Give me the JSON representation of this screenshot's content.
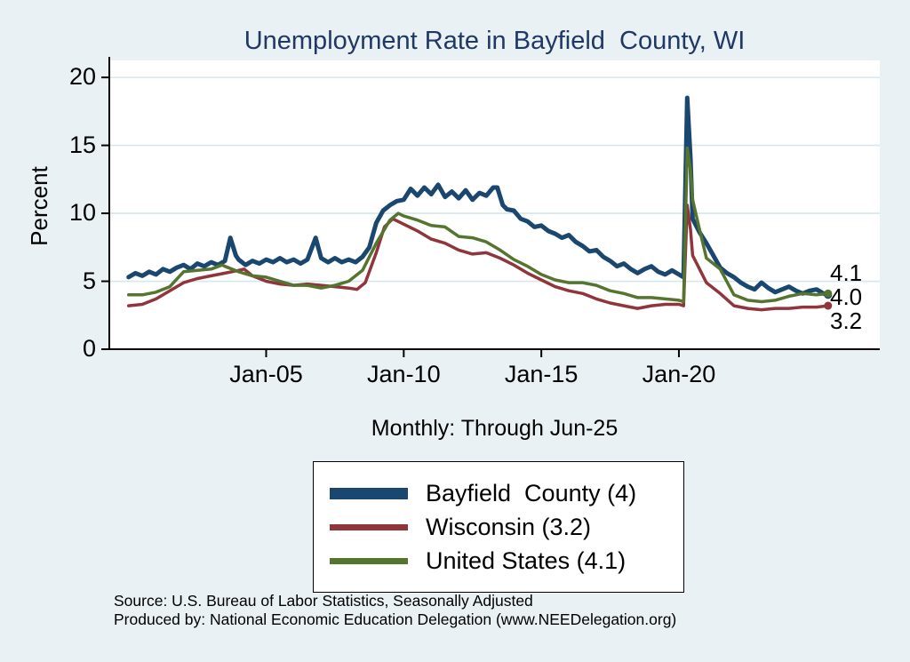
{
  "chart_data": {
    "type": "line",
    "title": "Unemployment Rate in Bayfield  County, WI",
    "subtitle": "Monthly: Through Jun-25",
    "ylabel": "Percent",
    "xlabel": "",
    "ylim": [
      0,
      21.25
    ],
    "xlim": [
      1999.3,
      2027.3
    ],
    "grid": true,
    "grid_color": "#d6e7ec",
    "background_color": "#e9f1f4",
    "plot_background": "#ffffff",
    "y_ticks": [
      0,
      5,
      10,
      15,
      20
    ],
    "x_ticks": [
      {
        "x": 2005,
        "label": "Jan-05"
      },
      {
        "x": 2010,
        "label": "Jan-10"
      },
      {
        "x": 2015,
        "label": "Jan-15"
      },
      {
        "x": 2020,
        "label": "Jan-20"
      }
    ],
    "legend_position": "bottom-center",
    "end_labels": [
      "4.1",
      "4.0",
      "3.2"
    ],
    "series": [
      {
        "name": "Bayfield  County (4)",
        "color": "#1a476f",
        "width": 5,
        "points": [
          [
            2000.0,
            5.3
          ],
          [
            2000.25,
            5.6
          ],
          [
            2000.5,
            5.4
          ],
          [
            2000.75,
            5.7
          ],
          [
            2001.0,
            5.5
          ],
          [
            2001.25,
            5.9
          ],
          [
            2001.5,
            5.7
          ],
          [
            2001.75,
            6.0
          ],
          [
            2002.0,
            6.2
          ],
          [
            2002.25,
            5.9
          ],
          [
            2002.5,
            6.3
          ],
          [
            2002.75,
            6.1
          ],
          [
            2003.0,
            6.4
          ],
          [
            2003.25,
            6.2
          ],
          [
            2003.5,
            6.5
          ],
          [
            2003.7,
            8.2
          ],
          [
            2003.9,
            6.9
          ],
          [
            2004.0,
            6.6
          ],
          [
            2004.25,
            6.2
          ],
          [
            2004.5,
            6.5
          ],
          [
            2004.75,
            6.3
          ],
          [
            2005.0,
            6.6
          ],
          [
            2005.25,
            6.4
          ],
          [
            2005.5,
            6.7
          ],
          [
            2005.75,
            6.4
          ],
          [
            2006.0,
            6.6
          ],
          [
            2006.25,
            6.3
          ],
          [
            2006.5,
            6.6
          ],
          [
            2006.8,
            8.2
          ],
          [
            2007.0,
            6.7
          ],
          [
            2007.25,
            6.4
          ],
          [
            2007.5,
            6.7
          ],
          [
            2007.75,
            6.4
          ],
          [
            2008.0,
            6.6
          ],
          [
            2008.25,
            6.4
          ],
          [
            2008.5,
            6.8
          ],
          [
            2008.75,
            7.5
          ],
          [
            2009.0,
            9.3
          ],
          [
            2009.25,
            10.2
          ],
          [
            2009.5,
            10.6
          ],
          [
            2009.75,
            10.9
          ],
          [
            2010.0,
            11.0
          ],
          [
            2010.25,
            11.8
          ],
          [
            2010.5,
            11.3
          ],
          [
            2010.75,
            11.9
          ],
          [
            2011.0,
            11.4
          ],
          [
            2011.25,
            12.1
          ],
          [
            2011.5,
            11.2
          ],
          [
            2011.75,
            11.6
          ],
          [
            2012.0,
            11.1
          ],
          [
            2012.25,
            11.7
          ],
          [
            2012.5,
            11.0
          ],
          [
            2012.75,
            11.5
          ],
          [
            2013.0,
            11.3
          ],
          [
            2013.25,
            11.9
          ],
          [
            2013.4,
            11.9
          ],
          [
            2013.6,
            10.6
          ],
          [
            2013.75,
            10.3
          ],
          [
            2014.0,
            10.2
          ],
          [
            2014.25,
            9.6
          ],
          [
            2014.5,
            9.4
          ],
          [
            2014.75,
            9.0
          ],
          [
            2015.0,
            9.1
          ],
          [
            2015.25,
            8.7
          ],
          [
            2015.5,
            8.5
          ],
          [
            2015.75,
            8.2
          ],
          [
            2016.0,
            8.4
          ],
          [
            2016.25,
            7.9
          ],
          [
            2016.5,
            7.6
          ],
          [
            2016.75,
            7.2
          ],
          [
            2017.0,
            7.3
          ],
          [
            2017.25,
            6.8
          ],
          [
            2017.5,
            6.5
          ],
          [
            2017.75,
            6.1
          ],
          [
            2018.0,
            6.3
          ],
          [
            2018.25,
            5.9
          ],
          [
            2018.5,
            5.6
          ],
          [
            2018.75,
            5.9
          ],
          [
            2019.0,
            6.1
          ],
          [
            2019.25,
            5.7
          ],
          [
            2019.5,
            5.5
          ],
          [
            2019.75,
            5.8
          ],
          [
            2020.0,
            5.5
          ],
          [
            2020.17,
            5.3
          ],
          [
            2020.3,
            18.5
          ],
          [
            2020.42,
            14.0
          ],
          [
            2020.5,
            9.6
          ],
          [
            2020.75,
            8.6
          ],
          [
            2021.0,
            7.8
          ],
          [
            2021.25,
            6.9
          ],
          [
            2021.5,
            6.0
          ],
          [
            2021.75,
            5.6
          ],
          [
            2022.0,
            5.3
          ],
          [
            2022.25,
            4.9
          ],
          [
            2022.5,
            4.6
          ],
          [
            2022.75,
            4.4
          ],
          [
            2023.0,
            4.9
          ],
          [
            2023.25,
            4.5
          ],
          [
            2023.5,
            4.2
          ],
          [
            2023.75,
            4.4
          ],
          [
            2024.0,
            4.6
          ],
          [
            2024.25,
            4.3
          ],
          [
            2024.5,
            4.1
          ],
          [
            2024.75,
            4.3
          ],
          [
            2025.0,
            4.4
          ],
          [
            2025.25,
            4.1
          ],
          [
            2025.42,
            4.0
          ]
        ]
      },
      {
        "name": "Wisconsin (3.2)",
        "color": "#90353b",
        "width": 3.5,
        "points": [
          [
            2000.0,
            3.2
          ],
          [
            2000.5,
            3.3
          ],
          [
            2001.0,
            3.7
          ],
          [
            2001.5,
            4.3
          ],
          [
            2002.0,
            4.9
          ],
          [
            2002.5,
            5.2
          ],
          [
            2003.0,
            5.4
          ],
          [
            2003.5,
            5.6
          ],
          [
            2004.0,
            5.8
          ],
          [
            2004.2,
            5.9
          ],
          [
            2004.5,
            5.4
          ],
          [
            2005.0,
            5.0
          ],
          [
            2005.5,
            4.8
          ],
          [
            2006.0,
            4.7
          ],
          [
            2006.5,
            4.8
          ],
          [
            2007.0,
            4.7
          ],
          [
            2007.5,
            4.6
          ],
          [
            2008.0,
            4.5
          ],
          [
            2008.3,
            4.4
          ],
          [
            2008.6,
            4.9
          ],
          [
            2009.0,
            7.1
          ],
          [
            2009.3,
            9.0
          ],
          [
            2009.6,
            9.6
          ],
          [
            2010.0,
            9.2
          ],
          [
            2010.5,
            8.7
          ],
          [
            2011.0,
            8.1
          ],
          [
            2011.5,
            7.8
          ],
          [
            2012.0,
            7.3
          ],
          [
            2012.5,
            7.0
          ],
          [
            2013.0,
            7.1
          ],
          [
            2013.5,
            6.7
          ],
          [
            2014.0,
            6.2
          ],
          [
            2014.5,
            5.6
          ],
          [
            2015.0,
            5.1
          ],
          [
            2015.5,
            4.6
          ],
          [
            2016.0,
            4.3
          ],
          [
            2016.5,
            4.1
          ],
          [
            2017.0,
            3.7
          ],
          [
            2017.5,
            3.4
          ],
          [
            2018.0,
            3.2
          ],
          [
            2018.5,
            3.0
          ],
          [
            2019.0,
            3.2
          ],
          [
            2019.5,
            3.3
          ],
          [
            2020.0,
            3.3
          ],
          [
            2020.17,
            3.2
          ],
          [
            2020.3,
            10.6
          ],
          [
            2020.42,
            8.8
          ],
          [
            2020.5,
            6.9
          ],
          [
            2020.75,
            5.9
          ],
          [
            2021.0,
            4.9
          ],
          [
            2021.5,
            4.1
          ],
          [
            2022.0,
            3.2
          ],
          [
            2022.5,
            3.0
          ],
          [
            2023.0,
            2.9
          ],
          [
            2023.5,
            3.0
          ],
          [
            2024.0,
            3.0
          ],
          [
            2024.5,
            3.1
          ],
          [
            2025.0,
            3.1
          ],
          [
            2025.42,
            3.2
          ]
        ]
      },
      {
        "name": "United States (4.1)",
        "color": "#55752f",
        "width": 3.5,
        "points": [
          [
            2000.0,
            4.0
          ],
          [
            2000.5,
            4.0
          ],
          [
            2001.0,
            4.2
          ],
          [
            2001.5,
            4.6
          ],
          [
            2002.0,
            5.7
          ],
          [
            2002.5,
            5.8
          ],
          [
            2003.0,
            5.9
          ],
          [
            2003.4,
            6.2
          ],
          [
            2003.5,
            6.1
          ],
          [
            2004.0,
            5.7
          ],
          [
            2004.5,
            5.4
          ],
          [
            2005.0,
            5.3
          ],
          [
            2005.5,
            5.0
          ],
          [
            2006.0,
            4.7
          ],
          [
            2006.5,
            4.7
          ],
          [
            2007.0,
            4.5
          ],
          [
            2007.5,
            4.7
          ],
          [
            2008.0,
            5.0
          ],
          [
            2008.5,
            5.8
          ],
          [
            2009.0,
            7.8
          ],
          [
            2009.5,
            9.5
          ],
          [
            2009.8,
            10.0
          ],
          [
            2010.0,
            9.8
          ],
          [
            2010.5,
            9.5
          ],
          [
            2011.0,
            9.1
          ],
          [
            2011.5,
            9.0
          ],
          [
            2012.0,
            8.3
          ],
          [
            2012.5,
            8.2
          ],
          [
            2013.0,
            7.9
          ],
          [
            2013.5,
            7.3
          ],
          [
            2014.0,
            6.6
          ],
          [
            2014.5,
            6.1
          ],
          [
            2015.0,
            5.5
          ],
          [
            2015.5,
            5.1
          ],
          [
            2016.0,
            4.9
          ],
          [
            2016.5,
            4.9
          ],
          [
            2017.0,
            4.7
          ],
          [
            2017.5,
            4.3
          ],
          [
            2018.0,
            4.1
          ],
          [
            2018.5,
            3.8
          ],
          [
            2019.0,
            3.8
          ],
          [
            2019.5,
            3.7
          ],
          [
            2020.0,
            3.6
          ],
          [
            2020.17,
            3.5
          ],
          [
            2020.3,
            14.8
          ],
          [
            2020.42,
            13.2
          ],
          [
            2020.5,
            11.0
          ],
          [
            2020.75,
            8.8
          ],
          [
            2021.0,
            6.7
          ],
          [
            2021.5,
            5.9
          ],
          [
            2022.0,
            4.0
          ],
          [
            2022.5,
            3.6
          ],
          [
            2023.0,
            3.5
          ],
          [
            2023.5,
            3.6
          ],
          [
            2024.0,
            3.9
          ],
          [
            2024.5,
            4.1
          ],
          [
            2025.0,
            4.0
          ],
          [
            2025.42,
            4.1
          ]
        ]
      }
    ],
    "notes": [
      "Source: U.S. Bureau of Labor Statistics, Seasonally Adjusted",
      "Produced by: National Economic Education Delegation (www.NEEDelegation.org)"
    ]
  }
}
